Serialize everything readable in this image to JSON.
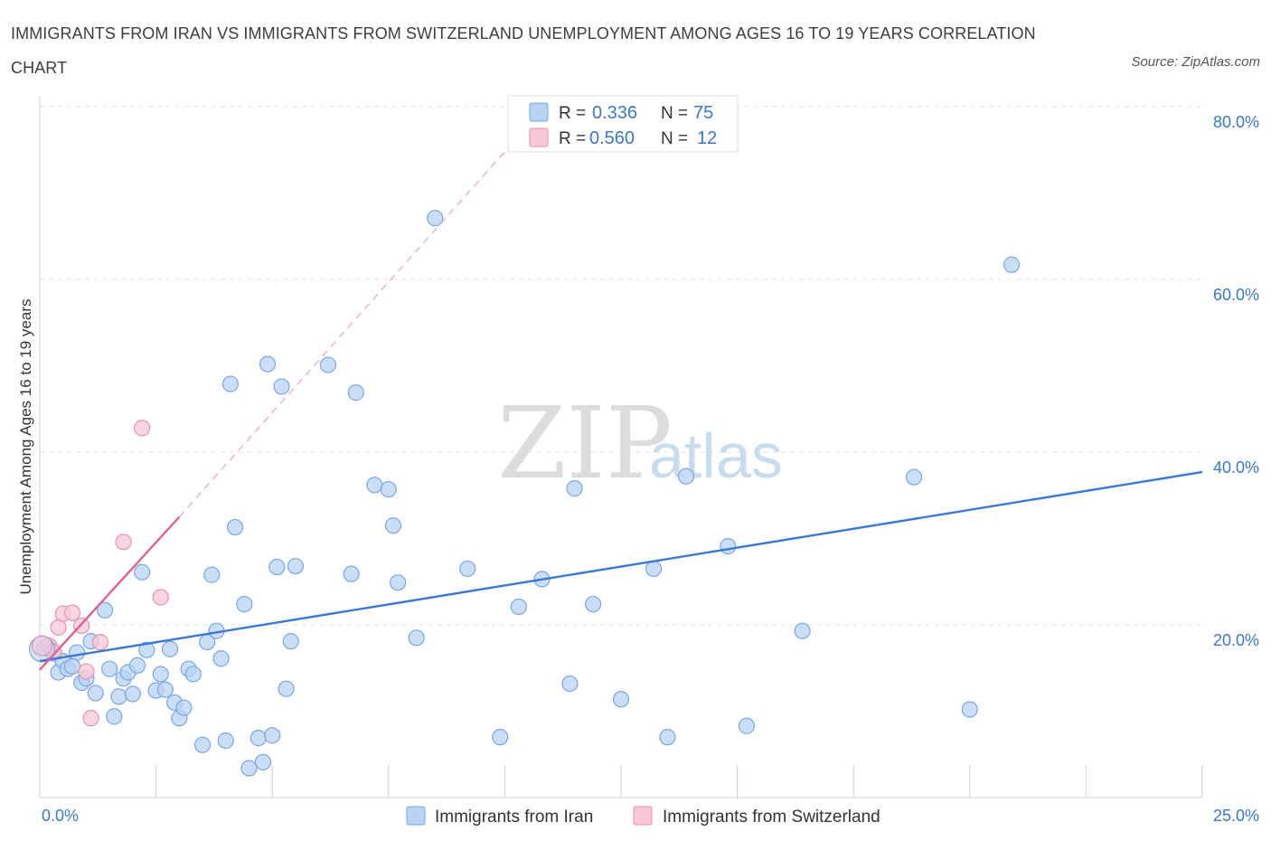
{
  "title": "IMMIGRANTS FROM IRAN VS IMMIGRANTS FROM SWITZERLAND UNEMPLOYMENT AMONG AGES 16 TO 19 YEARS CORRELATION CHART",
  "source": "Source: ZipAtlas.com",
  "watermark": {
    "zip": "ZIP",
    "atlas": "atlas"
  },
  "legend": {
    "r_label": "R =",
    "n_label": "N =",
    "entries": [
      {
        "r": "0.336",
        "n": "75",
        "fill": "#b9d3f5",
        "stroke": "#7aa6e0"
      },
      {
        "r": "0.560",
        "n": "12",
        "fill": "#f9c8d6",
        "stroke": "#e592ad"
      }
    ]
  },
  "chart_data": {
    "type": "scatter",
    "xlabel": "",
    "ylabel": "Unemployment Among Ages 16 to 19 years",
    "xlim": [
      0,
      25
    ],
    "ylim": [
      0,
      80
    ],
    "x_tick_labels": [
      {
        "value": 0,
        "label": "0.0%"
      },
      {
        "value": 25,
        "label": "25.0%"
      }
    ],
    "y_ticks": [
      {
        "value": 20,
        "label": "20.0%"
      },
      {
        "value": 40,
        "label": "40.0%"
      },
      {
        "value": 60,
        "label": "60.0%"
      },
      {
        "value": 80,
        "label": "80.0%"
      }
    ],
    "grid": true,
    "legend_position": "top-center",
    "series": [
      {
        "name": "Immigrants from Iran",
        "color": "#3a78d4",
        "fill": "#b9d3f5",
        "stroke": "#7aa6e0",
        "trend": {
          "x0": 0,
          "y0": 15.8,
          "x1": 25,
          "y1": 37.7,
          "style": "solid"
        },
        "points": [
          [
            0.1,
            17.3
          ],
          [
            0.3,
            16.7
          ],
          [
            0.4,
            14.5
          ],
          [
            0.5,
            15.8
          ],
          [
            0.6,
            14.9
          ],
          [
            0.8,
            16.8
          ],
          [
            0.7,
            15.2
          ],
          [
            0.9,
            13.3
          ],
          [
            1.0,
            13.8
          ],
          [
            1.1,
            18.1
          ],
          [
            1.2,
            12.1
          ],
          [
            1.4,
            21.7
          ],
          [
            1.5,
            14.9
          ],
          [
            1.6,
            9.4
          ],
          [
            1.7,
            11.7
          ],
          [
            1.8,
            13.8
          ],
          [
            1.9,
            14.5
          ],
          [
            2.0,
            12.0
          ],
          [
            2.1,
            15.3
          ],
          [
            2.2,
            26.1
          ],
          [
            2.3,
            17.1
          ],
          [
            2.5,
            12.4
          ],
          [
            2.6,
            14.3
          ],
          [
            2.7,
            12.5
          ],
          [
            2.8,
            17.2
          ],
          [
            2.9,
            11.0
          ],
          [
            3.0,
            9.2
          ],
          [
            3.1,
            10.4
          ],
          [
            3.2,
            14.9
          ],
          [
            3.3,
            14.3
          ],
          [
            3.5,
            6.1
          ],
          [
            3.6,
            18.0
          ],
          [
            3.7,
            25.8
          ],
          [
            3.8,
            19.3
          ],
          [
            4.0,
            6.6
          ],
          [
            4.1,
            47.9
          ],
          [
            4.2,
            31.3
          ],
          [
            4.4,
            22.4
          ],
          [
            4.5,
            3.4
          ],
          [
            4.7,
            6.9
          ],
          [
            4.8,
            4.1
          ],
          [
            4.9,
            50.2
          ],
          [
            5.0,
            7.2
          ],
          [
            5.1,
            26.7
          ],
          [
            5.2,
            47.6
          ],
          [
            5.3,
            12.6
          ],
          [
            5.4,
            18.1
          ],
          [
            5.5,
            26.8
          ],
          [
            6.2,
            50.1
          ],
          [
            6.7,
            25.9
          ],
          [
            6.8,
            46.9
          ],
          [
            7.2,
            36.2
          ],
          [
            7.5,
            35.7
          ],
          [
            7.6,
            31.5
          ],
          [
            7.7,
            24.9
          ],
          [
            8.1,
            18.5
          ],
          [
            8.5,
            67.1
          ],
          [
            9.2,
            26.5
          ],
          [
            9.9,
            7.0
          ],
          [
            10.3,
            22.1
          ],
          [
            10.8,
            25.3
          ],
          [
            11.4,
            13.2
          ],
          [
            11.5,
            35.8
          ],
          [
            11.9,
            22.4
          ],
          [
            12.5,
            11.4
          ],
          [
            13.2,
            26.5
          ],
          [
            13.5,
            7.0
          ],
          [
            13.9,
            37.2
          ],
          [
            14.8,
            29.1
          ],
          [
            15.2,
            8.3
          ],
          [
            16.4,
            19.3
          ],
          [
            20.0,
            10.2
          ],
          [
            20.9,
            61.7
          ],
          [
            18.8,
            37.1
          ],
          [
            3.9,
            16.1
          ]
        ]
      },
      {
        "name": "Immigrants from Switzerland",
        "color": "#e0608e",
        "fill": "#f9c8d6",
        "stroke": "#e592ad",
        "trend": {
          "x0": 0,
          "y0": 14.8,
          "x1": 3.0,
          "y1": 32.5,
          "style": "solid"
        },
        "trend_extension": {
          "x0": 3.0,
          "y0": 32.5,
          "x1": 10.2,
          "y1": 76.0,
          "style": "dashed"
        },
        "points": [
          [
            0.2,
            17.6
          ],
          [
            0.3,
            16.9
          ],
          [
            0.4,
            19.7
          ],
          [
            0.5,
            21.3
          ],
          [
            0.7,
            21.4
          ],
          [
            0.9,
            19.9
          ],
          [
            1.0,
            14.6
          ],
          [
            1.1,
            9.2
          ],
          [
            1.3,
            18.0
          ],
          [
            1.8,
            29.6
          ],
          [
            2.2,
            42.8
          ],
          [
            2.6,
            23.2
          ]
        ]
      }
    ]
  },
  "bottom_legend": [
    "Immigrants from Iran",
    "Immigrants from Switzerland"
  ]
}
